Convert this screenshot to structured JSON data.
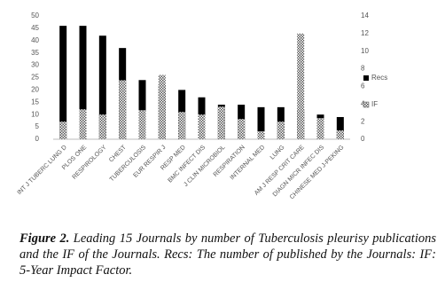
{
  "chart_data": {
    "type": "bar",
    "categories": [
      "INT J TUBERC LUNG D",
      "PLOS ONE",
      "RESPIROLOGY",
      "CHEST",
      "TUBERCULOSIS",
      "EUR RESPIR J",
      "RESP MED",
      "BMC INFECT DIS",
      "J CLIN MICROBIOL",
      "RESPIRATION",
      "INTERNAL MED",
      "LUNG",
      "AM J RESP CRIT CARE",
      "DIAGN MICR INFEC DIS",
      "CHINESE MED J-PEKING"
    ],
    "series": [
      {
        "name": "Recs",
        "color": "#000000",
        "values": [
          46,
          46,
          42,
          37,
          24,
          22,
          20,
          17,
          14,
          14,
          13,
          13,
          12,
          10,
          9
        ]
      },
      {
        "name": "IF",
        "color": "#555555",
        "axis": "y2",
        "values": [
          2.0,
          3.4,
          2.8,
          6.7,
          3.3,
          7.3,
          3.1,
          2.8,
          3.7,
          2.3,
          0.9,
          2.0,
          12.0,
          2.4,
          1.0
        ]
      }
    ],
    "ylim": [
      0,
      50
    ],
    "yticks": [
      0,
      5,
      10,
      15,
      20,
      25,
      30,
      35,
      40,
      45,
      50
    ],
    "y2lim": [
      0,
      14
    ],
    "y2ticks": [
      0,
      2,
      4,
      6,
      8,
      10,
      12,
      14
    ],
    "legend": "right"
  },
  "caption": {
    "label": "Figure 2.",
    "text": "Leading 15 Journals by number of Tuberculosis pleurisy publications and the IF of the Journals. Recs: The number of published by the Journals: IF: 5-Year Impact Factor."
  }
}
